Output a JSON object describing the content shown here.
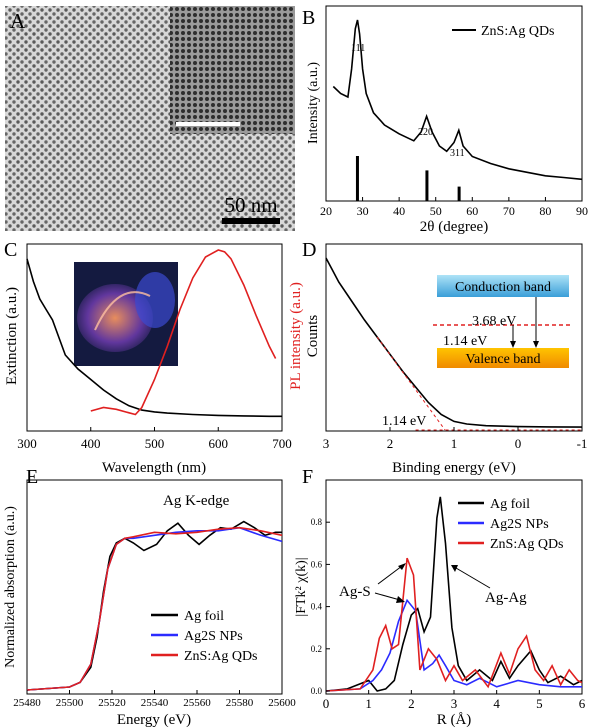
{
  "panels": {
    "A": {
      "letter": "A",
      "scale_bar_label": "50 nm"
    },
    "B": {
      "letter": "B",
      "legend_label": "ZnS:Ag QDs",
      "peak_labels": [
        "111",
        "220",
        "311"
      ],
      "xlabel": "2θ (degree)",
      "ylabel": "Intensity (a.u.)"
    },
    "C": {
      "letter": "C",
      "xlabel": "Wavelength (nm)",
      "ylabel_left": "Extinction (a.u.)",
      "ylabel_right": "PL intensity (a.u.)",
      "right_axis_color": "#e02020"
    },
    "D": {
      "letter": "D",
      "xlabel": "Binding energy (eV)",
      "ylabel": "Counts",
      "conduction_band_label": "Conduction band",
      "valence_band_label": "Valence band",
      "gap_label": "3.68 eV",
      "level_label": "1.14 eV",
      "edge_label": "1.14 eV"
    },
    "E": {
      "letter": "E",
      "xlabel": "Energy (eV)",
      "ylabel": "Normalized absorption (a.u.)",
      "annotation": "Ag K-edge"
    },
    "F": {
      "letter": "F",
      "xlabel": "R (Å)",
      "ylabel": "|FTk² χ(k)|",
      "annotations": [
        "Ag-S",
        "Ag-Ag"
      ]
    }
  },
  "chart_data": [
    {
      "panel": "B",
      "type": "line",
      "xlabel": "2θ (degree)",
      "ylabel": "Intensity (a.u.)",
      "xlim": [
        20,
        90
      ],
      "xticks": [
        20,
        30,
        40,
        50,
        60,
        70,
        80,
        90
      ],
      "legend": "top-right",
      "series": [
        {
          "name": "ZnS:Ag QDs",
          "color": "#000000",
          "x": [
            22,
            24,
            26,
            27,
            28,
            28.6,
            29.2,
            30,
            31,
            33,
            36,
            40,
            44,
            46,
            47.5,
            49,
            51,
            53,
            55,
            56.3,
            57.5,
            60,
            65,
            70,
            75,
            80,
            85,
            90
          ],
          "y": [
            0.62,
            0.58,
            0.56,
            0.72,
            0.95,
            1.0,
            0.92,
            0.72,
            0.58,
            0.47,
            0.4,
            0.35,
            0.31,
            0.36,
            0.45,
            0.36,
            0.28,
            0.25,
            0.3,
            0.37,
            0.28,
            0.22,
            0.18,
            0.15,
            0.13,
            0.11,
            0.1,
            0.09
          ]
        }
      ],
      "reference_sticks": [
        {
          "x": 28.6,
          "h": 0.25,
          "label": "111"
        },
        {
          "x": 47.6,
          "h": 0.17,
          "label": "220"
        },
        {
          "x": 56.4,
          "h": 0.08,
          "label": "311"
        }
      ]
    },
    {
      "panel": "C",
      "type": "line",
      "xlabel": "Wavelength (nm)",
      "ylabel": "Extinction (a.u.)",
      "ylabel_right": "PL intensity (a.u.)",
      "xlim": [
        300,
        700
      ],
      "xticks": [
        300,
        400,
        500,
        600,
        700
      ],
      "series": [
        {
          "name": "Extinction",
          "axis": "left",
          "color": "#000000",
          "x": [
            300,
            310,
            320,
            330,
            340,
            350,
            360,
            380,
            400,
            420,
            440,
            460,
            480,
            500,
            520,
            560,
            600,
            640,
            680,
            700
          ],
          "y": [
            0.95,
            0.82,
            0.72,
            0.66,
            0.6,
            0.5,
            0.4,
            0.32,
            0.26,
            0.2,
            0.15,
            0.11,
            0.085,
            0.075,
            0.068,
            0.06,
            0.055,
            0.052,
            0.05,
            0.05
          ]
        },
        {
          "name": "PL",
          "axis": "right",
          "color": "#e02020",
          "x": [
            400,
            420,
            440,
            460,
            470,
            480,
            500,
            520,
            540,
            560,
            580,
            600,
            610,
            620,
            640,
            660,
            680,
            690
          ],
          "y": [
            0.08,
            0.1,
            0.09,
            0.07,
            0.06,
            0.1,
            0.26,
            0.45,
            0.66,
            0.84,
            0.96,
            1.0,
            0.99,
            0.95,
            0.8,
            0.62,
            0.45,
            0.38
          ]
        }
      ]
    },
    {
      "panel": "D",
      "type": "line",
      "xlabel": "Binding energy (eV)",
      "ylabel": "Counts",
      "xlim": [
        3,
        -1
      ],
      "xticks": [
        3,
        2,
        1,
        0,
        -1
      ],
      "series": [
        {
          "name": "Counts",
          "color": "#000000",
          "x": [
            3.0,
            2.9,
            2.8,
            2.6,
            2.4,
            2.2,
            2.0,
            1.8,
            1.6,
            1.4,
            1.2,
            1.0,
            0.8,
            0.5,
            0.0,
            -0.5,
            -1.0
          ],
          "y": [
            1.0,
            0.93,
            0.86,
            0.75,
            0.64,
            0.54,
            0.44,
            0.34,
            0.25,
            0.16,
            0.09,
            0.05,
            0.035,
            0.025,
            0.02,
            0.018,
            0.017
          ]
        }
      ],
      "edge_eV": 1.14
    },
    {
      "panel": "E",
      "type": "line",
      "xlabel": "Energy (eV)",
      "ylabel": "Normalized absorption (a.u.)",
      "xlim": [
        25480,
        25600
      ],
      "xticks": [
        25480,
        25500,
        25520,
        25540,
        25560,
        25580,
        25600
      ],
      "legend": "bottom-right",
      "series": [
        {
          "name": "Ag foil",
          "color": "#000000",
          "x": [
            25480,
            25500,
            25505,
            25510,
            25513,
            25516,
            25519,
            25522,
            25526,
            25530,
            25535,
            25541,
            25546,
            25551,
            25556,
            25561,
            25566,
            25571,
            25576,
            25582,
            25587,
            25592,
            25597,
            25600
          ],
          "y": [
            0.0,
            0.02,
            0.05,
            0.15,
            0.35,
            0.65,
            0.88,
            0.97,
            1.0,
            0.97,
            0.92,
            0.96,
            1.05,
            1.1,
            1.02,
            0.96,
            1.02,
            1.07,
            1.06,
            1.11,
            1.07,
            1.02,
            1.04,
            1.04
          ]
        },
        {
          "name": "Ag2S NPs",
          "color": "#2b2bff",
          "x": [
            25480,
            25500,
            25505,
            25510,
            25514,
            25518,
            25522,
            25526,
            25530,
            25540,
            25550,
            25560,
            25570,
            25580,
            25590,
            25600
          ],
          "y": [
            0.0,
            0.02,
            0.05,
            0.17,
            0.45,
            0.8,
            0.96,
            1.0,
            1.0,
            1.02,
            1.04,
            1.05,
            1.05,
            1.07,
            1.02,
            0.98
          ]
        },
        {
          "name": "ZnS:Ag QDs",
          "color": "#e02020",
          "x": [
            25480,
            25500,
            25505,
            25510,
            25514,
            25518,
            25522,
            25526,
            25530,
            25540,
            25550,
            25560,
            25570,
            25580,
            25590,
            25600
          ],
          "y": [
            0.0,
            0.02,
            0.05,
            0.17,
            0.45,
            0.8,
            0.96,
            1.0,
            1.01,
            1.04,
            1.03,
            1.04,
            1.06,
            1.07,
            1.05,
            1.02
          ]
        }
      ]
    },
    {
      "panel": "F",
      "type": "line",
      "xlabel": "R (Å)",
      "ylabel": "|FTk² χ(k)|",
      "xlim": [
        0,
        6
      ],
      "ylim": [
        0,
        0.95
      ],
      "xticks": [
        0,
        1,
        2,
        3,
        4,
        5,
        6
      ],
      "yticks": [
        0.0,
        0.2,
        0.4,
        0.6,
        0.8
      ],
      "legend": "top-right",
      "series": [
        {
          "name": "Ag foil",
          "color": "#000000",
          "x": [
            0,
            0.5,
            1.0,
            1.2,
            1.4,
            1.6,
            1.8,
            2.0,
            2.15,
            2.3,
            2.45,
            2.6,
            2.68,
            2.8,
            2.95,
            3.1,
            3.3,
            3.6,
            3.9,
            4.1,
            4.3,
            4.5,
            4.8,
            5.0,
            5.2,
            5.5,
            5.8,
            6.0
          ],
          "y": [
            0.0,
            0.01,
            0.05,
            0.0,
            0.01,
            0.05,
            0.22,
            0.36,
            0.39,
            0.28,
            0.35,
            0.82,
            0.92,
            0.7,
            0.3,
            0.12,
            0.05,
            0.1,
            0.05,
            0.14,
            0.06,
            0.12,
            0.19,
            0.1,
            0.04,
            0.07,
            0.03,
            0.05
          ]
        },
        {
          "name": "Ag2S NPs",
          "color": "#2b2bff",
          "x": [
            0,
            0.8,
            1.1,
            1.3,
            1.5,
            1.7,
            1.9,
            2.1,
            2.3,
            2.5,
            2.65,
            2.8,
            3.0,
            3.3,
            3.6,
            4.0,
            4.5,
            5.0,
            5.5,
            6.0
          ],
          "y": [
            0.0,
            0.01,
            0.05,
            0.1,
            0.18,
            0.33,
            0.43,
            0.38,
            0.1,
            0.13,
            0.17,
            0.12,
            0.05,
            0.03,
            0.06,
            0.02,
            0.05,
            0.03,
            0.02,
            0.02
          ]
        },
        {
          "name": "ZnS:Ag QDs",
          "color": "#e02020",
          "x": [
            0,
            0.8,
            1.1,
            1.25,
            1.4,
            1.55,
            1.7,
            1.9,
            2.05,
            2.2,
            2.4,
            2.6,
            2.8,
            3.0,
            3.2,
            3.5,
            3.8,
            4.1,
            4.3,
            4.5,
            4.7,
            4.9,
            5.1,
            5.3,
            5.5,
            5.7,
            5.9,
            6.0
          ],
          "y": [
            0.0,
            0.01,
            0.1,
            0.25,
            0.31,
            0.2,
            0.22,
            0.63,
            0.55,
            0.1,
            0.2,
            0.15,
            0.05,
            0.12,
            0.05,
            0.1,
            0.02,
            0.18,
            0.08,
            0.2,
            0.26,
            0.1,
            0.05,
            0.12,
            0.03,
            0.1,
            0.05,
            0.04
          ]
        }
      ]
    }
  ]
}
